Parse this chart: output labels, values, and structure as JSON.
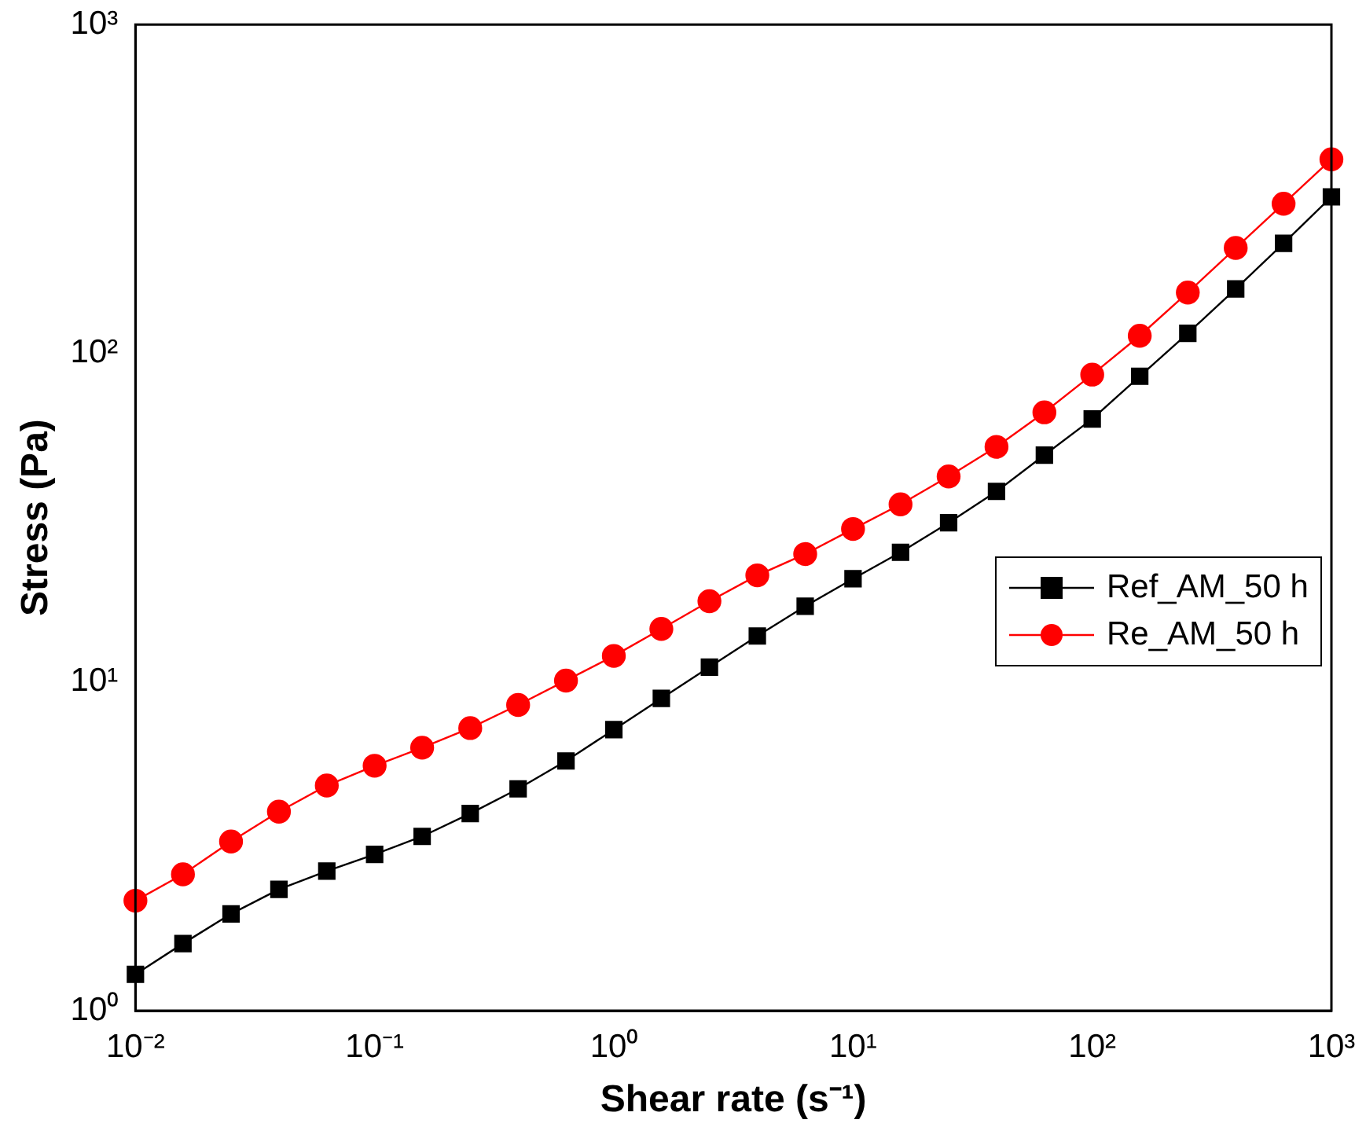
{
  "chart_data": {
    "type": "line",
    "xlabel": "Shear rate (s⁻¹)",
    "ylabel": "Stress (Pa)",
    "x": [
      0.01,
      0.0158,
      0.0251,
      0.0398,
      0.0631,
      0.1,
      0.158,
      0.251,
      0.398,
      0.631,
      1,
      1.58,
      2.51,
      3.98,
      6.31,
      10,
      15.8,
      25.1,
      39.8,
      63.1,
      100,
      158,
      251,
      398,
      631,
      1000
    ],
    "series": [
      {
        "name": "Ref_AM_50 h",
        "color": "#000000",
        "marker": "square",
        "values": [
          1.29,
          1.6,
          1.97,
          2.34,
          2.66,
          2.99,
          3.39,
          3.98,
          4.73,
          5.75,
          7.16,
          8.91,
          11.1,
          13.8,
          17,
          20.6,
          24.8,
          30.5,
          38,
          49,
          63.1,
          85.1,
          115,
          157,
          216,
          299
        ]
      },
      {
        "name": "Re_AM_50 h",
        "color": "#ff0000",
        "marker": "circle",
        "values": [
          2.16,
          2.6,
          3.27,
          4.03,
          4.84,
          5.56,
          6.31,
          7.24,
          8.51,
          10.1,
          12,
          14.5,
          17.6,
          21.1,
          24.5,
          29.2,
          34.7,
          42.2,
          51.9,
          66.1,
          86.1,
          113,
          153,
          209,
          285,
          389
        ]
      }
    ],
    "log": "xy",
    "xlim": [
      0.01,
      1000
    ],
    "ylim": [
      1,
      1000
    ],
    "xticks": [
      {
        "value": 0.01,
        "label": "10⁻²"
      },
      {
        "value": 0.1,
        "label": "10⁻¹"
      },
      {
        "value": 1,
        "label": "10⁰"
      },
      {
        "value": 10,
        "label": "10¹"
      },
      {
        "value": 100,
        "label": "10²"
      },
      {
        "value": 1000,
        "label": "10³"
      }
    ],
    "yticks": [
      {
        "value": 1,
        "label": "10⁰"
      },
      {
        "value": 10,
        "label": "10¹"
      },
      {
        "value": 100,
        "label": "10²"
      },
      {
        "value": 1000,
        "label": "10³"
      }
    ],
    "legend": "right",
    "grid": false,
    "line_style": "solid"
  }
}
